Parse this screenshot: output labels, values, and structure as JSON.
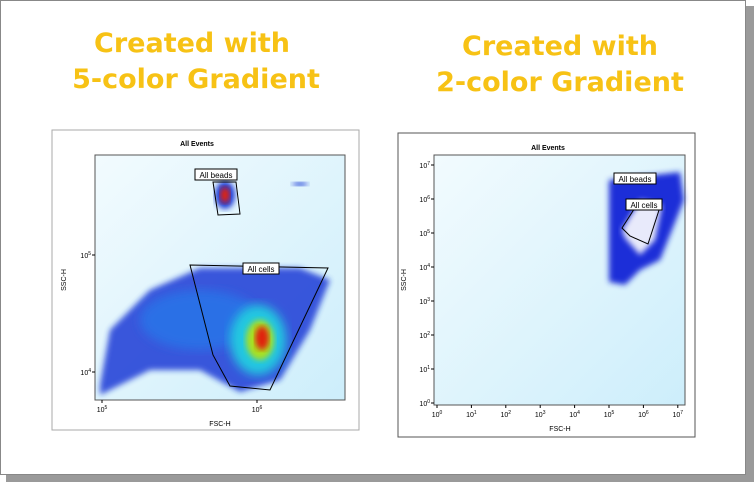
{
  "panels": [
    {
      "heading": [
        "Created with",
        "5-color Gradient"
      ],
      "plot": {
        "title": "All Events",
        "x_label": "FSC-H",
        "y_label": "SSC-H",
        "x_ticks": [
          {
            "base": "10",
            "exp": "5"
          },
          {
            "base": "10",
            "exp": "6"
          }
        ],
        "y_ticks": [
          {
            "base": "10",
            "exp": "5"
          },
          {
            "base": "10",
            "exp": "4"
          }
        ],
        "gates": [
          "All beads",
          "All cells"
        ]
      }
    },
    {
      "heading": [
        "Created with",
        "2-color Gradient"
      ],
      "plot": {
        "title": "All Events",
        "x_label": "FSC-H",
        "y_label": "SSC-H",
        "x_ticks": [
          {
            "base": "10",
            "exp": "0"
          },
          {
            "base": "10",
            "exp": "1"
          },
          {
            "base": "10",
            "exp": "2"
          },
          {
            "base": "10",
            "exp": "3"
          },
          {
            "base": "10",
            "exp": "4"
          },
          {
            "base": "10",
            "exp": "5"
          },
          {
            "base": "10",
            "exp": "6"
          },
          {
            "base": "10",
            "exp": "7"
          }
        ],
        "y_ticks": [
          {
            "base": "10",
            "exp": "7"
          },
          {
            "base": "10",
            "exp": "6"
          },
          {
            "base": "10",
            "exp": "5"
          },
          {
            "base": "10",
            "exp": "4"
          },
          {
            "base": "10",
            "exp": "3"
          },
          {
            "base": "10",
            "exp": "2"
          },
          {
            "base": "10",
            "exp": "1"
          },
          {
            "base": "10",
            "exp": "0"
          }
        ],
        "gates": [
          "All beads",
          "All cells"
        ]
      }
    }
  ]
}
